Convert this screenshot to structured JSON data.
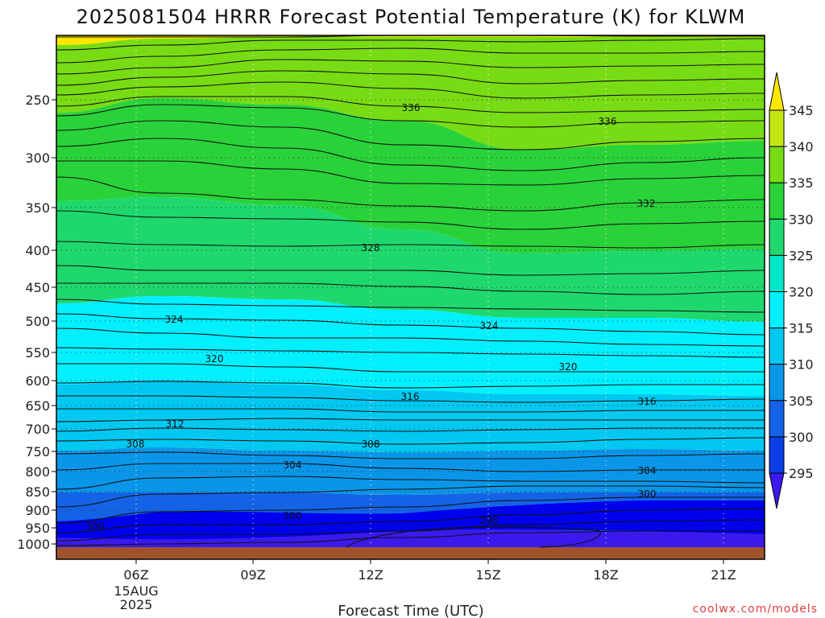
{
  "credit": "coolwx.com/models",
  "chart_data": {
    "type": "contour",
    "title": "2025081504 HRRR Forecast Potential Temperature (K) for KLWM",
    "xlabel": "Forecast Time (UTC)",
    "ylabel": "",
    "y_ticks": [
      250,
      300,
      350,
      400,
      450,
      500,
      550,
      600,
      650,
      700,
      750,
      800,
      850,
      900,
      950,
      1000
    ],
    "x_ticks": [
      "06Z",
      "09Z",
      "12Z",
      "15Z",
      "18Z",
      "21Z"
    ],
    "x_date_label": {
      "day": "15AUG",
      "year": "2025"
    },
    "colorbar": {
      "levels": [
        295,
        300,
        305,
        310,
        315,
        320,
        325,
        330,
        335,
        340,
        345
      ],
      "colors": [
        "#3a1aee",
        "#0000ee",
        "#0a3ee6",
        "#1462e6",
        "#0a96e8",
        "#00c8f0",
        "#00f0ff",
        "#00e6c8",
        "#1ed86e",
        "#2ad23a",
        "#78dc14",
        "#c6e614",
        "#ffe600"
      ]
    },
    "contours": [
      {
        "value": 336,
        "labels": [
          "336",
          "336"
        ]
      },
      {
        "value": 332,
        "labels": [
          "332"
        ]
      },
      {
        "value": 328,
        "labels": [
          "328"
        ]
      },
      {
        "value": 324,
        "labels": [
          "324",
          "324"
        ]
      },
      {
        "value": 320,
        "labels": [
          "320",
          "320"
        ]
      },
      {
        "value": 316,
        "labels": [
          "316",
          "316"
        ]
      },
      {
        "value": 312,
        "labels": [
          "312"
        ]
      },
      {
        "value": 308,
        "labels": [
          "308",
          "308"
        ]
      },
      {
        "value": 304,
        "labels": [
          "304",
          "304"
        ]
      },
      {
        "value": 300,
        "labels": [
          "300",
          "300",
          "300"
        ]
      },
      {
        "value": 296,
        "labels": [
          "296"
        ]
      }
    ]
  }
}
